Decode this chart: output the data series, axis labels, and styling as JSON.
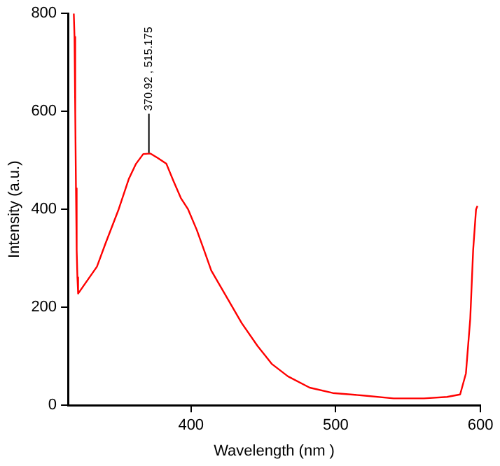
{
  "chart_data": {
    "type": "line",
    "xlabel": "Wavelength (nm )",
    "ylabel": "Intensity (a.u.)",
    "x": [
      319,
      319.5,
      320,
      320.5,
      321,
      321.5,
      322,
      335,
      341,
      350,
      357,
      362,
      367,
      372,
      377,
      383,
      388,
      393,
      398,
      404,
      409,
      414,
      425,
      435,
      446,
      456,
      467,
      482,
      498,
      519,
      540,
      561,
      577,
      586,
      590,
      593,
      595,
      597,
      598
    ],
    "series": [
      {
        "color": "#ff0000",
        "values": [
          800,
          752,
          597,
          443,
          317,
          261,
          228,
          283,
          331,
          400,
          462,
          493,
          513,
          514,
          505,
          493,
          457,
          423,
          400,
          358,
          317,
          275,
          219,
          168,
          121,
          84,
          59,
          36,
          25,
          20,
          14,
          14,
          17,
          22,
          65,
          177,
          317,
          400,
          407
        ]
      }
    ],
    "xlim": [
      315,
      600
    ],
    "xticks": [
      400,
      500,
      600
    ],
    "ylim": [
      0,
      800
    ],
    "yticks": [
      0,
      200,
      400,
      600,
      800
    ],
    "grid": false,
    "legend": false,
    "marker": "none",
    "line_style": "solid",
    "annotations": [
      {
        "text": "370.92 , 515.175",
        "x": 370.92,
        "y": 515.175
      }
    ]
  }
}
